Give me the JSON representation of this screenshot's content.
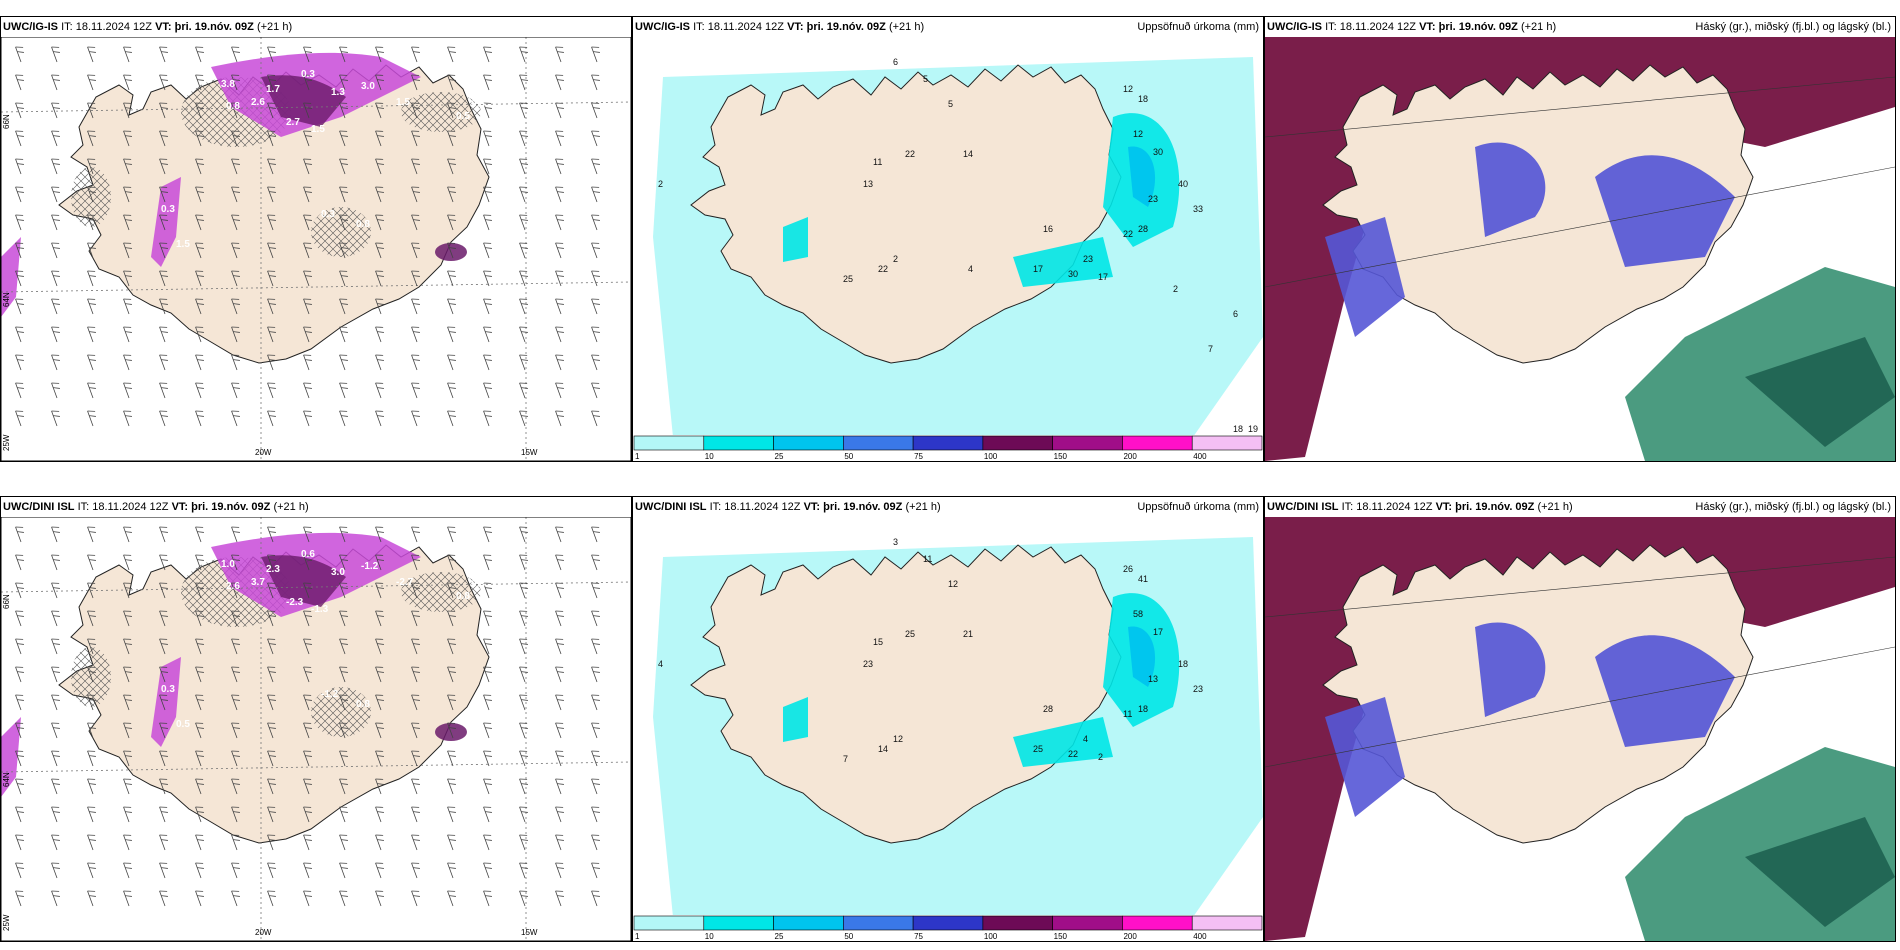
{
  "panels": [
    {
      "id": "p1",
      "type": "wind",
      "model": "UWC/IG-IS",
      "it_label": "IT:",
      "it": "18.11.2024 12Z",
      "vt_label": "VT:",
      "vt": "þri. 19.nóv. 09Z",
      "lead": "(+21 h)",
      "right": "",
      "axis_labels": {
        "lon_20": "20W",
        "lon_15": "15W",
        "lat_66": "66N",
        "lat_64": "64N",
        "lon_25": "25W"
      },
      "values": [
        "3.8",
        "0.8",
        "2.6",
        "1.7",
        "0.3",
        "1.3",
        "3.0",
        "1.5",
        "2.7",
        "1.5",
        "0.5",
        "0.5",
        "0.3",
        "0.8",
        "0.3",
        "1.5"
      ]
    },
    {
      "id": "p2",
      "type": "precip",
      "model": "UWC/IG-IS",
      "it_label": "IT:",
      "it": "18.11.2024 12Z",
      "vt_label": "VT:",
      "vt": "þri. 19.nóv. 09Z",
      "lead": "(+21 h)",
      "right": "Uppsöfnuð úrkoma (mm)",
      "values": [
        "2",
        "6",
        "5",
        "5",
        "12",
        "18",
        "12",
        "22",
        "13",
        "11",
        "14",
        "30",
        "40",
        "23",
        "33",
        "28",
        "22",
        "16",
        "17",
        "30",
        "17",
        "23",
        "25",
        "22",
        "2",
        "4",
        "6",
        "2",
        "7",
        "18",
        "19"
      ]
    },
    {
      "id": "p3",
      "type": "cloud",
      "model": "UWC/IG-IS",
      "it_label": "IT:",
      "it": "18.11.2024 12Z",
      "vt_label": "VT:",
      "vt": "þri. 19.nóv. 09Z",
      "lead": "(+21 h)",
      "right": "Háský (gr.), miðský (fj.bl.) og lágský (bl.)"
    },
    {
      "id": "p4",
      "type": "wind",
      "model": "UWC/DINI ISL",
      "it_label": "IT:",
      "it": "18.11.2024 12Z",
      "vt_label": "VT:",
      "vt": "þri. 19.nóv. 09Z",
      "lead": "(+21 h)",
      "right": "",
      "axis_labels": {
        "lon_20": "20W",
        "lon_15": "15W",
        "lat_66": "66N",
        "lat_64": "64N",
        "lon_25": "25W"
      },
      "values": [
        "1.0",
        "2.6",
        "3.7",
        "2.3",
        "0.6",
        "3.0",
        "-1.2",
        "-2.7",
        "-2.3",
        "-1.3",
        "0.8",
        "0.3",
        "-1.2",
        "0.8",
        "0.3",
        "0.5"
      ]
    },
    {
      "id": "p5",
      "type": "precip",
      "model": "UWC/DINI ISL",
      "it_label": "IT:",
      "it": "18.11.2024 12Z",
      "vt_label": "VT:",
      "vt": "þri. 19.nóv. 09Z",
      "lead": "(+21 h)",
      "right": "Uppsöfnuð úrkoma (mm)",
      "values": [
        "4",
        "3",
        "11",
        "12",
        "26",
        "41",
        "58",
        "25",
        "23",
        "15",
        "21",
        "17",
        "18",
        "13",
        "23",
        "18",
        "11",
        "28",
        "25",
        "22",
        "2",
        "4",
        "7",
        "14",
        "12"
      ]
    },
    {
      "id": "p6",
      "type": "cloud",
      "model": "UWC/DINI ISL",
      "it_label": "IT:",
      "it": "18.11.2024 12Z",
      "vt_label": "VT:",
      "vt": "þri. 19.nóv. 09Z",
      "lead": "(+21 h)",
      "right": "Háský (gr.), miðský (fj.bl.) og lágský (bl.)"
    }
  ],
  "legend": {
    "ticks": [
      "1",
      "10",
      "25",
      "50",
      "75",
      "100",
      "150",
      "200",
      "400"
    ],
    "colors": [
      "#b3f7f7",
      "#00e6e6",
      "#00c4ee",
      "#3a78e8",
      "#2d36c8",
      "#6d0a56",
      "#a00e88",
      "#ff10c8",
      "#f4bff4"
    ]
  },
  "colors": {
    "land": "#f5e6d6",
    "precip_bg": "#b8f8f8",
    "cloud_high": "#7a1e4a",
    "cloud_mid": "#5557d6",
    "cloud_low": "#2c8a6a",
    "purple": "#c84ad8"
  }
}
